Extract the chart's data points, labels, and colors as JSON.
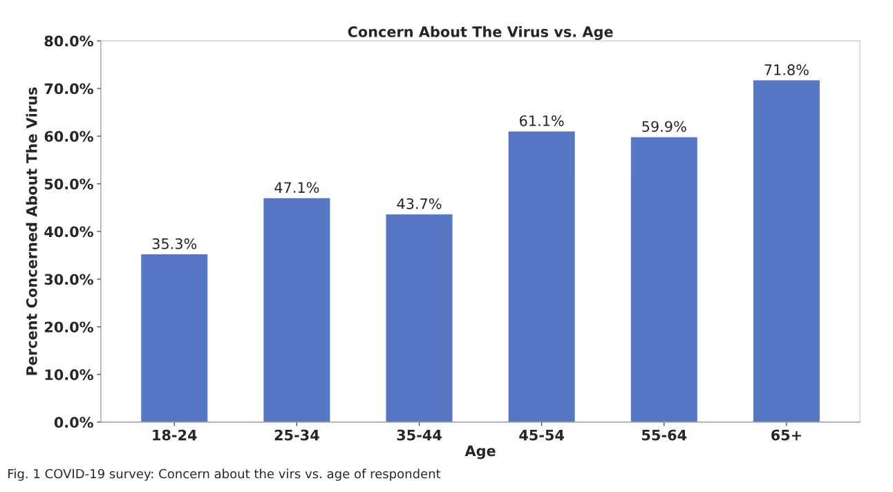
{
  "chart_data": {
    "type": "bar",
    "title": "Concern About The Virus vs. Age",
    "xlabel": "Age",
    "ylabel": "Percent Concerned About The Virus",
    "categories": [
      "18-24",
      "25-34",
      "35-44",
      "45-54",
      "55-64",
      "65+"
    ],
    "values": [
      35.3,
      47.1,
      43.7,
      61.1,
      59.9,
      71.8
    ],
    "value_labels": [
      "35.3%",
      "47.1%",
      "43.7%",
      "61.1%",
      "59.9%",
      "71.8%"
    ],
    "color": "#5677c4",
    "ylim": [
      0,
      80
    ],
    "yticks": [
      {
        "value": 0,
        "label": "0.0%"
      },
      {
        "value": 10,
        "label": "10.0%"
      },
      {
        "value": 20,
        "label": "20.0%"
      },
      {
        "value": 30,
        "label": "30.0%"
      },
      {
        "value": 40,
        "label": "40.0%"
      },
      {
        "value": 50,
        "label": "50.0%"
      },
      {
        "value": 60,
        "label": "60.0%"
      },
      {
        "value": 70,
        "label": "70.0%"
      },
      {
        "value": 80,
        "label": "80.0%"
      }
    ],
    "annotations": [
      "Fig. 1 COVID-19 survey: Concern about the virs vs. age of respondent"
    ]
  }
}
